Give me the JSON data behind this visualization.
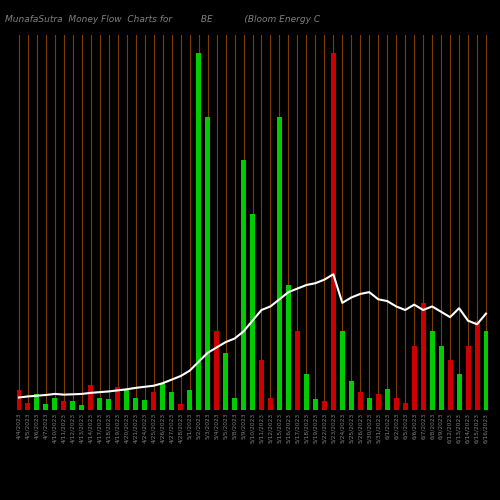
{
  "title": "MunafaSutra  Money Flow  Charts for          BE           (Bloom Energy C",
  "background_color": "#000000",
  "categories": [
    "4/4/2023",
    "4/5/2023",
    "4/6/2023",
    "4/7/2023",
    "4/10/2023",
    "4/11/2023",
    "4/12/2023",
    "4/13/2023",
    "4/14/2023",
    "4/17/2023",
    "4/18/2023",
    "4/19/2023",
    "4/20/2023",
    "4/21/2023",
    "4/24/2023",
    "4/25/2023",
    "4/26/2023",
    "4/27/2023",
    "4/28/2023",
    "5/1/2023",
    "5/2/2023",
    "5/3/2023",
    "5/4/2023",
    "5/5/2023",
    "5/8/2023",
    "5/9/2023",
    "5/10/2023",
    "5/11/2023",
    "5/12/2023",
    "5/15/2023",
    "5/16/2023",
    "5/17/2023",
    "5/18/2023",
    "5/19/2023",
    "5/22/2023",
    "5/23/2023",
    "5/24/2023",
    "5/25/2023",
    "5/26/2023",
    "5/30/2023",
    "5/31/2023",
    "6/1/2023",
    "6/2/2023",
    "6/5/2023",
    "6/6/2023",
    "6/7/2023",
    "6/8/2023",
    "6/9/2023",
    "6/12/2023",
    "6/13/2023",
    "6/14/2023",
    "6/15/2023",
    "6/16/2023"
  ],
  "bar_heights": [
    5.5,
    2.0,
    4.5,
    1.8,
    3.5,
    2.5,
    2.5,
    1.5,
    7.0,
    3.5,
    3.0,
    6.5,
    5.5,
    3.5,
    2.8,
    5.0,
    7.5,
    5.0,
    1.8,
    5.5,
    100.0,
    82.0,
    22.0,
    16.0,
    3.5,
    70.0,
    55.0,
    14.0,
    3.5,
    82.0,
    35.0,
    22.0,
    10.0,
    3.0,
    2.5,
    100.0,
    22.0,
    8.0,
    5.0,
    3.5,
    4.5,
    6.0,
    3.5,
    2.0,
    18.0,
    30.0,
    22.0,
    18.0,
    14.0,
    10.0,
    18.0,
    25.0,
    22.0
  ],
  "bar_colors": [
    "red",
    "red",
    "green",
    "green",
    "green",
    "red",
    "green",
    "green",
    "red",
    "green",
    "green",
    "red",
    "green",
    "green",
    "green",
    "red",
    "green",
    "green",
    "red",
    "green",
    "green",
    "green",
    "red",
    "green",
    "green",
    "green",
    "green",
    "red",
    "red",
    "green",
    "green",
    "red",
    "green",
    "green",
    "red",
    "red",
    "green",
    "green",
    "red",
    "green",
    "red",
    "green",
    "red",
    "red",
    "red",
    "red",
    "green",
    "green",
    "red",
    "green",
    "red",
    "red",
    "green"
  ],
  "line_values": [
    3.5,
    3.8,
    4.0,
    4.2,
    4.5,
    4.3,
    4.4,
    4.5,
    4.8,
    5.0,
    5.2,
    5.5,
    5.8,
    6.2,
    6.5,
    6.8,
    7.5,
    8.5,
    9.5,
    11.0,
    13.5,
    16.0,
    17.5,
    19.0,
    20.0,
    22.0,
    25.0,
    28.0,
    29.0,
    31.0,
    33.0,
    34.0,
    35.0,
    35.5,
    36.5,
    38.0,
    30.0,
    31.5,
    32.5,
    33.0,
    31.0,
    30.5,
    29.0,
    28.0,
    29.5,
    28.0,
    29.0,
    27.5,
    26.0,
    28.5,
    25.0,
    24.0,
    27.0
  ],
  "text_color": "#808080",
  "line_color": "#ffffff",
  "green_color": "#00cc00",
  "red_color": "#cc0000",
  "orange_divider": "#8B4500",
  "bar_width": 0.55
}
